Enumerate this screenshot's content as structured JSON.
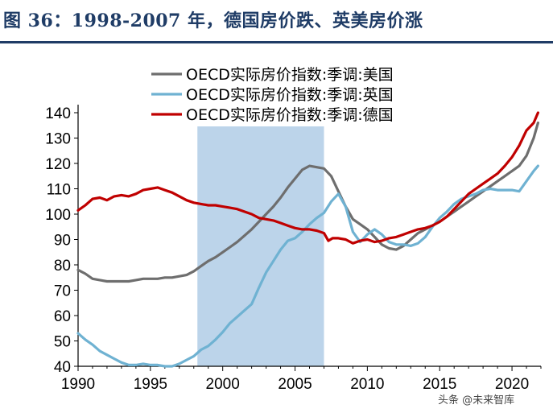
{
  "title": "图 36：1998-2007 年，德国房价跌、英美房价涨",
  "watermark": "头条 @未来智库",
  "chart_data": {
    "type": "line",
    "title": "图 36：1998-2007 年，德国房价跌、英美房价涨",
    "xlabel": "",
    "ylabel": "",
    "xlim": [
      1990,
      2022
    ],
    "ylim": [
      40,
      140
    ],
    "x_ticks": [
      1990,
      1995,
      2000,
      2005,
      2010,
      2015,
      2020
    ],
    "y_ticks": [
      40,
      50,
      60,
      70,
      80,
      90,
      100,
      110,
      120,
      130,
      140
    ],
    "shaded_region": {
      "x_start": 1998.25,
      "x_end": 2007.0,
      "color": "#bcd4ea"
    },
    "legend_position": "top",
    "series": [
      {
        "name": "OECD实际房价指数:季调:美国",
        "color": "#6e6e6e",
        "points": [
          [
            1990.0,
            78
          ],
          [
            1990.5,
            76.5
          ],
          [
            1991.0,
            74.5
          ],
          [
            1991.5,
            74
          ],
          [
            1992.0,
            73.5
          ],
          [
            1992.5,
            73.5
          ],
          [
            1993.0,
            73.5
          ],
          [
            1993.5,
            73.5
          ],
          [
            1994.0,
            74
          ],
          [
            1994.5,
            74.5
          ],
          [
            1995.0,
            74.5
          ],
          [
            1995.5,
            74.5
          ],
          [
            1996.0,
            75
          ],
          [
            1996.5,
            75
          ],
          [
            1997.0,
            75.5
          ],
          [
            1997.5,
            76
          ],
          [
            1998.0,
            77.5
          ],
          [
            1998.5,
            79.5
          ],
          [
            1999.0,
            81.5
          ],
          [
            1999.5,
            83
          ],
          [
            2000.0,
            85
          ],
          [
            2000.5,
            87
          ],
          [
            2001.0,
            89
          ],
          [
            2001.5,
            91.5
          ],
          [
            2002.0,
            94
          ],
          [
            2002.5,
            97
          ],
          [
            2003.0,
            100
          ],
          [
            2003.5,
            103
          ],
          [
            2004.0,
            106.5
          ],
          [
            2004.5,
            110.5
          ],
          [
            2005.0,
            114
          ],
          [
            2005.5,
            117.5
          ],
          [
            2006.0,
            119
          ],
          [
            2006.5,
            118.5
          ],
          [
            2007.0,
            118
          ],
          [
            2007.5,
            115
          ],
          [
            2008.0,
            109
          ],
          [
            2008.5,
            103
          ],
          [
            2009.0,
            98
          ],
          [
            2009.5,
            96
          ],
          [
            2010.0,
            94
          ],
          [
            2010.5,
            91
          ],
          [
            2011.0,
            88
          ],
          [
            2011.5,
            86.5
          ],
          [
            2012.0,
            86
          ],
          [
            2012.5,
            87.5
          ],
          [
            2013.0,
            90
          ],
          [
            2013.5,
            92.5
          ],
          [
            2014.0,
            94
          ],
          [
            2014.5,
            95.5
          ],
          [
            2015.0,
            97
          ],
          [
            2015.5,
            99
          ],
          [
            2016.0,
            101
          ],
          [
            2016.5,
            103
          ],
          [
            2017.0,
            105
          ],
          [
            2017.5,
            107
          ],
          [
            2018.0,
            109
          ],
          [
            2018.5,
            111
          ],
          [
            2019.0,
            113
          ],
          [
            2019.5,
            115
          ],
          [
            2020.0,
            117
          ],
          [
            2020.5,
            119
          ],
          [
            2021.0,
            123
          ],
          [
            2021.5,
            130
          ],
          [
            2021.8,
            136
          ]
        ]
      },
      {
        "name": "OECD实际房价指数:季调:英国",
        "color": "#6fb2d2",
        "points": [
          [
            1990.0,
            53
          ],
          [
            1990.5,
            50.5
          ],
          [
            1991.0,
            48.5
          ],
          [
            1991.5,
            46
          ],
          [
            1992.0,
            44.5
          ],
          [
            1992.5,
            43
          ],
          [
            1993.0,
            41.5
          ],
          [
            1993.5,
            40.5
          ],
          [
            1994.0,
            40.5
          ],
          [
            1994.5,
            41
          ],
          [
            1995.0,
            40.5
          ],
          [
            1995.5,
            40.5
          ],
          [
            1996.0,
            40
          ],
          [
            1996.5,
            40
          ],
          [
            1997.0,
            41
          ],
          [
            1997.5,
            42.5
          ],
          [
            1998.0,
            44
          ],
          [
            1998.5,
            46.5
          ],
          [
            1999.0,
            48
          ],
          [
            1999.5,
            50.5
          ],
          [
            2000.0,
            53.5
          ],
          [
            2000.5,
            57
          ],
          [
            2001.0,
            59.5
          ],
          [
            2001.5,
            62
          ],
          [
            2002.0,
            64.5
          ],
          [
            2002.5,
            71
          ],
          [
            2003.0,
            77
          ],
          [
            2003.5,
            81.5
          ],
          [
            2004.0,
            86
          ],
          [
            2004.5,
            89.5
          ],
          [
            2005.0,
            90.5
          ],
          [
            2005.5,
            93
          ],
          [
            2006.0,
            96
          ],
          [
            2006.5,
            98.5
          ],
          [
            2007.0,
            100.5
          ],
          [
            2007.5,
            105
          ],
          [
            2008.0,
            108
          ],
          [
            2008.5,
            103
          ],
          [
            2009.0,
            93
          ],
          [
            2009.5,
            89
          ],
          [
            2010.0,
            92
          ],
          [
            2010.5,
            94
          ],
          [
            2011.0,
            92
          ],
          [
            2011.5,
            89
          ],
          [
            2012.0,
            88
          ],
          [
            2012.5,
            88
          ],
          [
            2013.0,
            87.5
          ],
          [
            2013.5,
            88.5
          ],
          [
            2014.0,
            91
          ],
          [
            2014.5,
            95
          ],
          [
            2015.0,
            98.5
          ],
          [
            2015.5,
            101
          ],
          [
            2016.0,
            104
          ],
          [
            2016.5,
            106
          ],
          [
            2017.0,
            107
          ],
          [
            2017.5,
            108
          ],
          [
            2018.0,
            109.5
          ],
          [
            2018.5,
            110
          ],
          [
            2019.0,
            109.5
          ],
          [
            2019.5,
            109.5
          ],
          [
            2020.0,
            109.5
          ],
          [
            2020.5,
            109
          ],
          [
            2021.0,
            113
          ],
          [
            2021.5,
            117
          ],
          [
            2021.8,
            119
          ]
        ]
      },
      {
        "name": "OECD实际房价指数:季调:德国",
        "color": "#c00000",
        "points": [
          [
            1990.0,
            101.5
          ],
          [
            1990.5,
            103.5
          ],
          [
            1991.0,
            106
          ],
          [
            1991.5,
            106.5
          ],
          [
            1992.0,
            105.5
          ],
          [
            1992.5,
            107
          ],
          [
            1993.0,
            107.5
          ],
          [
            1993.5,
            107
          ],
          [
            1994.0,
            108
          ],
          [
            1994.5,
            109.5
          ],
          [
            1995.0,
            110
          ],
          [
            1995.5,
            110.5
          ],
          [
            1996.0,
            109.5
          ],
          [
            1996.5,
            108.5
          ],
          [
            1997.0,
            107
          ],
          [
            1997.5,
            105.5
          ],
          [
            1998.0,
            104.5
          ],
          [
            1998.5,
            104
          ],
          [
            1999.0,
            103.5
          ],
          [
            1999.5,
            103.5
          ],
          [
            2000.0,
            103
          ],
          [
            2000.5,
            102.5
          ],
          [
            2001.0,
            102
          ],
          [
            2001.5,
            101
          ],
          [
            2002.0,
            100
          ],
          [
            2002.5,
            98.5
          ],
          [
            2003.0,
            98
          ],
          [
            2003.5,
            97.5
          ],
          [
            2004.0,
            96.5
          ],
          [
            2004.5,
            95.5
          ],
          [
            2005.0,
            94.5
          ],
          [
            2005.5,
            94
          ],
          [
            2006.0,
            94
          ],
          [
            2006.5,
            93.5
          ],
          [
            2007.0,
            92.5
          ],
          [
            2007.3,
            89.5
          ],
          [
            2007.6,
            90.5
          ],
          [
            2008.0,
            90.5
          ],
          [
            2008.5,
            90
          ],
          [
            2009.0,
            88.5
          ],
          [
            2009.5,
            89.5
          ],
          [
            2010.0,
            90
          ],
          [
            2010.5,
            89
          ],
          [
            2011.0,
            89.5
          ],
          [
            2011.5,
            90.5
          ],
          [
            2012.0,
            91
          ],
          [
            2012.5,
            92
          ],
          [
            2013.0,
            93
          ],
          [
            2013.5,
            94
          ],
          [
            2014.0,
            94.5
          ],
          [
            2014.5,
            95.5
          ],
          [
            2015.0,
            97
          ],
          [
            2015.5,
            99
          ],
          [
            2016.0,
            102
          ],
          [
            2016.5,
            105
          ],
          [
            2017.0,
            108
          ],
          [
            2017.5,
            110
          ],
          [
            2018.0,
            112
          ],
          [
            2018.5,
            114
          ],
          [
            2019.0,
            116
          ],
          [
            2019.5,
            119
          ],
          [
            2020.0,
            122.5
          ],
          [
            2020.5,
            127
          ],
          [
            2021.0,
            133
          ],
          [
            2021.5,
            136
          ],
          [
            2021.8,
            140
          ]
        ]
      }
    ]
  }
}
